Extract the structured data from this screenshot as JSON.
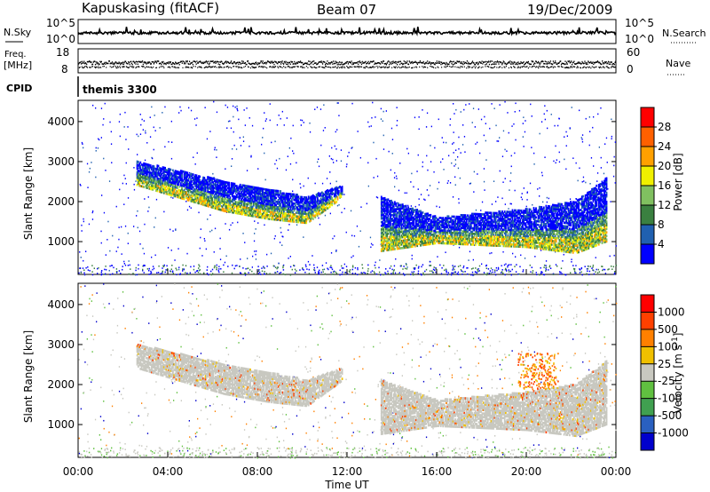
{
  "header": {
    "station": "Kapuskasing (fitACF)",
    "beam": "Beam 07",
    "date": "19/Dec/2009"
  },
  "side_labels": {
    "nsky": "N.Sky",
    "freq_line1": "Freq.",
    "freq_line2": "[MHz]",
    "cpid": "CPID",
    "nsearch": "N.Search",
    "nave": "Nave"
  },
  "nsky_panel": {
    "tick_top": "10^5",
    "tick_bottom": "10^0"
  },
  "freq_panel": {
    "left_ticks": [
      "18",
      "8"
    ],
    "right_ticks": [
      "60",
      "0"
    ]
  },
  "cpid_panel": {
    "text": "themis 3300"
  },
  "x_axis": {
    "label": "Time UT",
    "ticks": [
      "00:00",
      "04:00",
      "08:00",
      "12:00",
      "16:00",
      "20:00",
      "00:00"
    ]
  },
  "chart_data": [
    {
      "type": "heatmap",
      "title": "Power",
      "xlabel": "Time UT",
      "ylabel": "Slant Range [km]",
      "xlim": [
        0,
        24
      ],
      "ylim": [
        180,
        4530
      ],
      "yticks": [
        "1000",
        "2000",
        "3000",
        "4000"
      ],
      "colorbar": {
        "label": "Power [dB]",
        "ticks": [
          "4",
          "8",
          "12",
          "16",
          "20",
          "24",
          "28"
        ],
        "colors": [
          "#0000ff",
          "#2060b0",
          "#3a8040",
          "#80c060",
          "#f0f000",
          "#ffa000",
          "#ff6000",
          "#ff0000"
        ]
      },
      "echo_bands": [
        {
          "t": [
            2.6,
            6.5,
            8.5,
            10.2,
            11.8
          ],
          "lower": [
            2400,
            1750,
            1550,
            1450,
            2100
          ],
          "upper": [
            3000,
            2500,
            2300,
            2100,
            2400
          ]
        },
        {
          "t": [
            13.5,
            16.0,
            20.0,
            22.2,
            23.6
          ],
          "lower": [
            750,
            950,
            850,
            700,
            1000
          ],
          "upper": [
            2100,
            1600,
            1800,
            2000,
            2600
          ]
        }
      ]
    },
    {
      "type": "heatmap",
      "title": "Velocity",
      "xlabel": "Time UT",
      "ylabel": "Slant Range [km]",
      "xlim": [
        0,
        24
      ],
      "ylim": [
        180,
        4530
      ],
      "yticks": [
        "1000",
        "2000",
        "3000",
        "4000"
      ],
      "colorbar": {
        "label_main": "Velocity  [m s",
        "label_exp": "-1",
        "label_end": "]",
        "ticks": [
          "1000",
          "500",
          "100",
          "25",
          "-25",
          "-100",
          "-500",
          "-1000"
        ],
        "colors": [
          "#0000cc",
          "#2a60c0",
          "#40a050",
          "#60c040",
          "#c8c8c0",
          "#f0c000",
          "#ff8000",
          "#ff4000",
          "#ff0000"
        ]
      },
      "echo_bands": [
        {
          "t": [
            2.6,
            6.5,
            8.5,
            10.2,
            11.8
          ],
          "lower": [
            2400,
            1750,
            1550,
            1450,
            2100
          ],
          "upper": [
            3000,
            2500,
            2300,
            2100,
            2400
          ]
        },
        {
          "t": [
            13.5,
            16.0,
            20.0,
            22.2,
            23.6
          ],
          "lower": [
            750,
            950,
            850,
            700,
            1000
          ],
          "upper": [
            2100,
            1600,
            1800,
            2000,
            2600
          ]
        }
      ]
    }
  ]
}
